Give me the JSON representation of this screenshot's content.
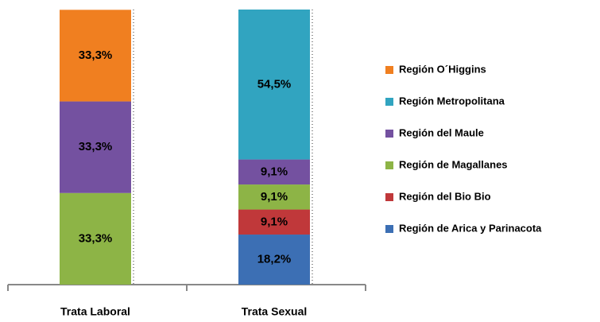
{
  "chart_data": {
    "type": "stacked_bar_100",
    "categories": [
      "Trata Laboral",
      "Trata Sexual"
    ],
    "ylim": [
      0,
      100
    ],
    "series": [
      {
        "name": "Región de Arica y Parinacota",
        "color": "#3c6fb4",
        "values": [
          0,
          18.2
        ],
        "value_labels": [
          null,
          "18,2%"
        ]
      },
      {
        "name": "Región del Bio Bio",
        "color": "#c0383a",
        "values": [
          0,
          9.1
        ],
        "value_labels": [
          null,
          "9,1%"
        ]
      },
      {
        "name": "Región de Magallanes",
        "color": "#8db446",
        "values": [
          33.3,
          9.1
        ],
        "value_labels": [
          "33,3%",
          "9,1%"
        ]
      },
      {
        "name": "Región del Maule",
        "color": "#7451a0",
        "values": [
          33.3,
          9.1
        ],
        "value_labels": [
          "33,3%",
          "9,1%"
        ]
      },
      {
        "name": "Región Metropolitana",
        "color": "#31a4c0",
        "values": [
          0,
          54.5
        ],
        "value_labels": [
          null,
          "54,5%"
        ]
      },
      {
        "name": "Región O´Higgins",
        "color": "#f07f20",
        "values": [
          33.3,
          0
        ],
        "value_labels": [
          "33,3%",
          null
        ]
      }
    ],
    "legend": "right"
  }
}
